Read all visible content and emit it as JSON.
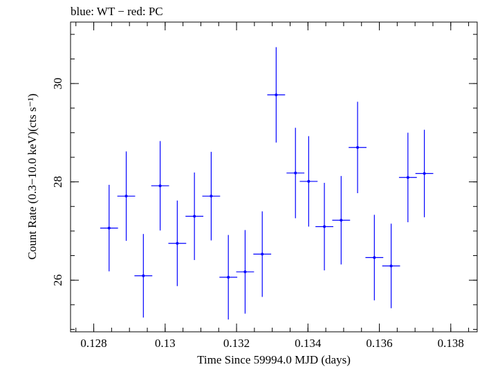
{
  "chart_data": {
    "type": "scatter",
    "title": "blue: WT − red: PC",
    "xlabel": "Time Since 59994.0 MJD (days)",
    "ylabel": "Count Rate (0.3−10.0 keV)(cts s⁻¹)",
    "xlim": [
      0.12735,
      0.13874
    ],
    "ylim": [
      24.95,
      31.25
    ],
    "x_ticks": [
      {
        "value": 0.128,
        "label": "0.128"
      },
      {
        "value": 0.13,
        "label": "0.13"
      },
      {
        "value": 0.132,
        "label": "0.132"
      },
      {
        "value": 0.134,
        "label": "0.134"
      },
      {
        "value": 0.136,
        "label": "0.136"
      },
      {
        "value": 0.138,
        "label": "0.138"
      }
    ],
    "y_ticks": [
      {
        "value": 26,
        "label": "26"
      },
      {
        "value": 28,
        "label": "28"
      },
      {
        "value": 30,
        "label": "30"
      }
    ],
    "grid": false,
    "legend": "none",
    "series": [
      {
        "color": "#0000ff",
        "points": [
          {
            "x": 0.12843,
            "xerr": 0.00025,
            "y": 27.06,
            "yerr": 0.88
          },
          {
            "x": 0.12891,
            "xerr": 0.00025,
            "y": 27.71,
            "yerr": 0.91
          },
          {
            "x": 0.12939,
            "xerr": 0.00025,
            "y": 26.09,
            "yerr": 0.85
          },
          {
            "x": 0.12986,
            "xerr": 0.00025,
            "y": 27.92,
            "yerr": 0.91
          },
          {
            "x": 0.13034,
            "xerr": 0.00025,
            "y": 26.75,
            "yerr": 0.87
          },
          {
            "x": 0.13082,
            "xerr": 0.00025,
            "y": 27.3,
            "yerr": 0.89
          },
          {
            "x": 0.13129,
            "xerr": 0.00025,
            "y": 27.71,
            "yerr": 0.9
          },
          {
            "x": 0.13177,
            "xerr": 0.00025,
            "y": 26.06,
            "yerr": 0.86
          },
          {
            "x": 0.13224,
            "xerr": 0.00025,
            "y": 26.17,
            "yerr": 0.85
          },
          {
            "x": 0.13272,
            "xerr": 0.00025,
            "y": 26.53,
            "yerr": 0.87
          },
          {
            "x": 0.13311,
            "xerr": 0.00025,
            "y": 29.77,
            "yerr": 0.97
          },
          {
            "x": 0.13365,
            "xerr": 0.00025,
            "y": 28.18,
            "yerr": 0.92
          },
          {
            "x": 0.13402,
            "xerr": 0.00025,
            "y": 28.01,
            "yerr": 0.92
          },
          {
            "x": 0.13446,
            "xerr": 0.00025,
            "y": 27.09,
            "yerr": 0.89
          },
          {
            "x": 0.13493,
            "xerr": 0.00025,
            "y": 27.22,
            "yerr": 0.9
          },
          {
            "x": 0.13539,
            "xerr": 0.00025,
            "y": 28.7,
            "yerr": 0.93
          },
          {
            "x": 0.13586,
            "xerr": 0.00025,
            "y": 26.46,
            "yerr": 0.87
          },
          {
            "x": 0.13633,
            "xerr": 0.00025,
            "y": 26.29,
            "yerr": 0.86
          },
          {
            "x": 0.1368,
            "xerr": 0.00025,
            "y": 28.09,
            "yerr": 0.91
          },
          {
            "x": 0.13726,
            "xerr": 0.00025,
            "y": 28.17,
            "yerr": 0.89
          }
        ]
      }
    ]
  }
}
